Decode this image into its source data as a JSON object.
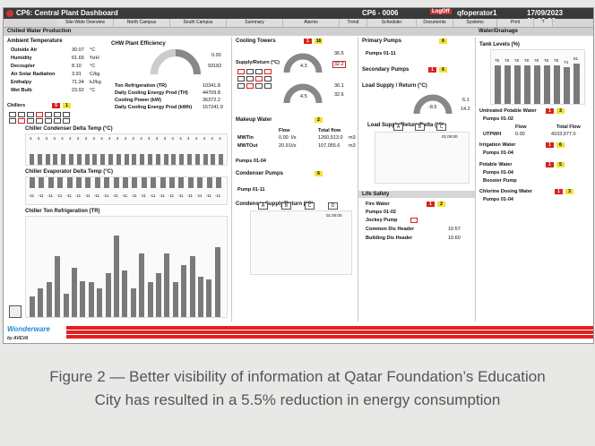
{
  "window": {
    "title": "CP6: Central Plant Dashboard",
    "code": "CP6 - 0006",
    "logout": "LogOff",
    "user": "qfoperator1",
    "datetime": "17/09/2023 21:16:08"
  },
  "nav": [
    "Site-Wide Overview",
    "North Campus",
    "South Campus",
    "Summary",
    "Alarms",
    "Trend",
    "Scheduler",
    "Documents",
    "Systems",
    "Print",
    "?"
  ],
  "section": "Chilled Water Production",
  "ambient": {
    "title": "Ambient Temperature",
    "rows": [
      {
        "label": "Outside Air",
        "value": "30.07",
        "unit": "°C"
      },
      {
        "label": "Humidity",
        "value": "61.65",
        "unit": "%rH"
      },
      {
        "label": "Decoupler",
        "value": "8.10",
        "unit": "°C"
      },
      {
        "label": "Air Solar Radiation",
        "value": "3.91",
        "unit": "C/kg"
      },
      {
        "label": "Enthalpy",
        "value": "71.34",
        "unit": "kJ/kg"
      },
      {
        "label": "Wet Bulb",
        "value": "23.92",
        "unit": "°C"
      }
    ]
  },
  "chw": {
    "title": "CHW Plant Efficiency",
    "gauge_value": "0.00",
    "gauge_sub": "93182",
    "rows": [
      {
        "label": "Ton Refrigeration (TR)",
        "value": "10341.8"
      },
      {
        "label": "Daily Cooling Energy Prod (TH)",
        "value": "44709.8"
      },
      {
        "label": "Cooling Power (kW)",
        "value": "36372.2"
      },
      {
        "label": "Daily Cooling Energy Prod (kWh)",
        "value": "157241.0"
      }
    ]
  },
  "chillers": {
    "label": "Chillers",
    "red": "5",
    "yel": "1"
  },
  "chiller_condenser": {
    "title": "Chiller Condenser Delta Temp (°C)",
    "values": [
      4,
      4,
      4,
      4,
      4,
      4,
      4,
      4,
      4,
      4,
      4,
      4,
      4,
      4,
      4,
      4,
      4,
      4,
      4,
      4,
      4,
      4,
      4,
      4,
      4
    ]
  },
  "chiller_evaporator": {
    "title": "Chiller Evaporator Delta Temp (°C)",
    "values": [
      "-11",
      "-11",
      "-11",
      "-11",
      "-11",
      "-11",
      "-11",
      "-11",
      "-11",
      "-11",
      "-11",
      "-11",
      "-11",
      "-11",
      "-11",
      "-11",
      "-11",
      "-11",
      "-11",
      "-11",
      "-11"
    ]
  },
  "chart_data": {
    "type": "bar",
    "title": "Chiller Ton Refrigeration (TR)",
    "categories": [
      "1",
      "2",
      "3",
      "4",
      "5",
      "6",
      "7",
      "8",
      "9",
      "10",
      "11",
      "12",
      "13",
      "14",
      "15",
      "16",
      "17",
      "18",
      "19",
      "20",
      "21",
      "22",
      "23"
    ],
    "values": [
      18,
      25,
      30,
      52,
      20,
      42,
      31,
      30,
      25,
      38,
      70,
      40,
      25,
      55,
      30,
      38,
      55,
      30,
      45,
      52,
      35,
      32,
      60
    ],
    "ylim": [
      0,
      80
    ]
  },
  "cooling_towers": {
    "title": "Cooling Towers",
    "red": "1",
    "yel": "16",
    "supply_title": "Supply/Return (°C)",
    "a": "4.3",
    "b": "36.5",
    "c": "32.2",
    "d": "4.5",
    "e": "36.1",
    "f": "32.6"
  },
  "makeup": {
    "title": "Makeup Water",
    "yel": "2",
    "flow_h": "Flow",
    "total_h": "Total flow",
    "rows": [
      {
        "label": "MWTin",
        "flow": "0.00",
        "unit": "l/s",
        "total": "1260,513.0",
        "tunit": "m3"
      },
      {
        "label": "MWTOut",
        "flow": "20.91",
        "unit": "l/s",
        "total": "107,055.6",
        "tunit": "m3"
      }
    ],
    "pumps": "Pumps 01-04"
  },
  "condenser_pumps": {
    "title": "Condenser Pumps",
    "yel": "6",
    "pump": "Pump 01-11"
  },
  "condenser_supply": {
    "title": "Condenser Supply/Return (°C)",
    "labels": [
      "A",
      "B",
      "C",
      "D"
    ],
    "time": "01:00:00"
  },
  "primary_pumps": {
    "title": "Primary Pumps",
    "yel": "6",
    "pump": "Pumps 01-11"
  },
  "secondary_pumps": {
    "title": "Secondary Pumps",
    "red": "1",
    "yel": "6"
  },
  "load_supply": {
    "title": "Load Supply / Return (°C)",
    "v1": "-8.5",
    "v2": "6.1",
    "v3": "14.2"
  },
  "load_delta": {
    "title": "Load Supply/Return/Delta (°C)",
    "labels": [
      "A",
      "B",
      "C"
    ],
    "time": "01:00:00"
  },
  "life_safety": {
    "title": "Life Safety",
    "fire": "Fire Water",
    "red": "1",
    "yel": "2",
    "pumps": "Pumps 01-02",
    "jockey": "Jockey Pump",
    "common": "Common Dis Header",
    "common_val": "10.57",
    "building": "Building Dis Header",
    "building_val": "10.60",
    "unit": "bar"
  },
  "water": {
    "title": "Water/Drainage",
    "tank_title": "Tank Levels (%)",
    "tank_values": [
      78,
      78,
      78,
      78,
      78,
      78,
      78,
      74,
      81
    ],
    "tank_labels": [
      "78",
      "78",
      "78",
      "78",
      "78",
      "78",
      "78",
      "74",
      "81"
    ],
    "untreated": "Untreated Potable Water",
    "untreated_red": "1",
    "untreated_yel": "3",
    "untreated_pumps": "Pumps 01-02",
    "flow_h": "Flow",
    "total_h": "Total Flow",
    "utpwh": "UTPWH",
    "utpwh_flow": "0.00",
    "utpwh_total": "4103,977.0",
    "irrigation": "Irrigation Water",
    "irr_red": "1",
    "irr_yel": "6",
    "irr_pumps": "Pumps 01-04",
    "potable": "Potable Water",
    "pot_red": "1",
    "pot_yel": "5",
    "pot_pumps": "Pumps 01-04",
    "booster": "Booster Pump",
    "chlorine": "Chlorine Dosing Water",
    "chl_red": "1",
    "chl_yel": "3",
    "chl_pumps": "Pumps 01-04"
  },
  "caption": {
    "line1": "Figure 2 — Better visibility of information at Qatar Foundation’s Education",
    "line2": "City has resulted in a 5.5% reduction in energy consumption"
  },
  "colors": {
    "alarm": "#e41f1f",
    "accent": "#f2e233"
  }
}
